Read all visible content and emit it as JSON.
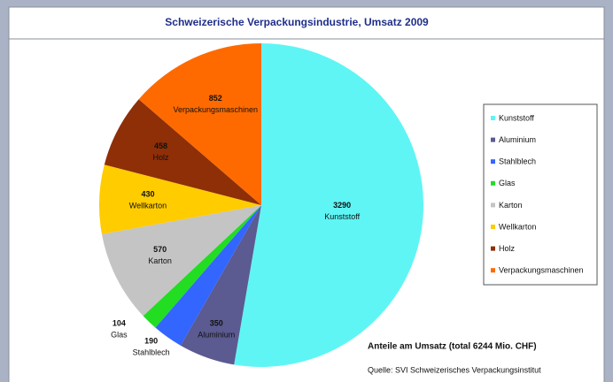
{
  "chart_data": {
    "type": "pie",
    "title": "Schweizerische Verpackungsindustrie, Umsatz 2009",
    "categories": [
      "Kunststoff",
      "Aluminium",
      "Stahlblech",
      "Glas",
      "Karton",
      "Wellkarton",
      "Holz",
      "Verpackungsmaschinen"
    ],
    "values": [
      3290,
      350,
      190,
      104,
      570,
      430,
      458,
      852
    ],
    "colors": [
      "#5ff5f5",
      "#5b5a91",
      "#3366ff",
      "#22dd22",
      "#c4c4c4",
      "#ffcc00",
      "#8e2f08",
      "#ff6a00"
    ],
    "note": "Anteile am Umsatz (total 6244 Mio. CHF)",
    "source": "Quelle: SVI Schweizerisches Verpackungsinstitut",
    "legend": "right"
  }
}
